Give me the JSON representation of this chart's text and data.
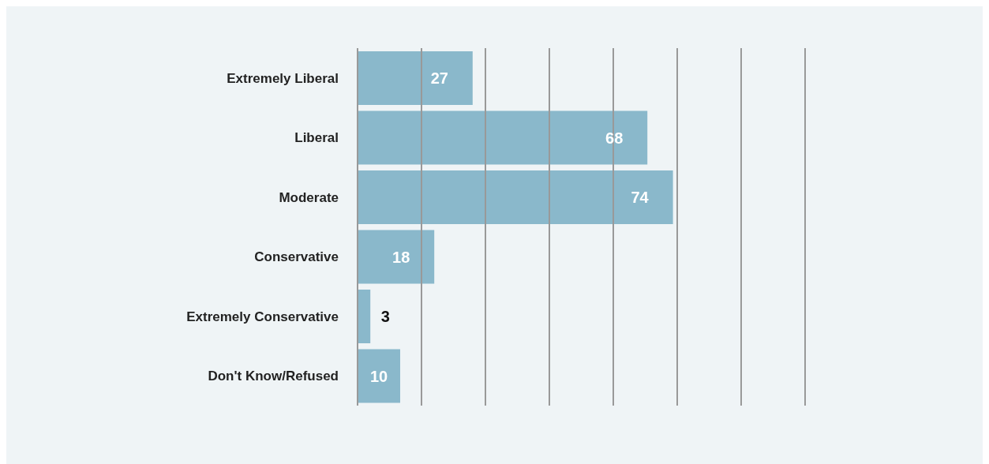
{
  "chart_data": {
    "type": "bar",
    "orientation": "horizontal",
    "categories": [
      "Extremely Liberal",
      "Liberal",
      "Moderate",
      "Conservative",
      "Extremely Conservative",
      "Don't Know/Refused"
    ],
    "values": [
      27,
      68,
      74,
      18,
      3,
      10
    ],
    "color": "#8ab8cb",
    "data_labels": true,
    "grid": "x",
    "tick_labels": "y",
    "xlim": [
      0,
      105
    ],
    "xticks": [
      {
        "value": 0,
        "label": null
      },
      {
        "value": 15,
        "label": null
      },
      {
        "value": 30,
        "label": null
      },
      {
        "value": 45,
        "label": null
      },
      {
        "value": 60,
        "label": null
      },
      {
        "value": 75,
        "label": null
      },
      {
        "value": 90,
        "label": null
      },
      {
        "value": 105,
        "label": null
      }
    ]
  }
}
